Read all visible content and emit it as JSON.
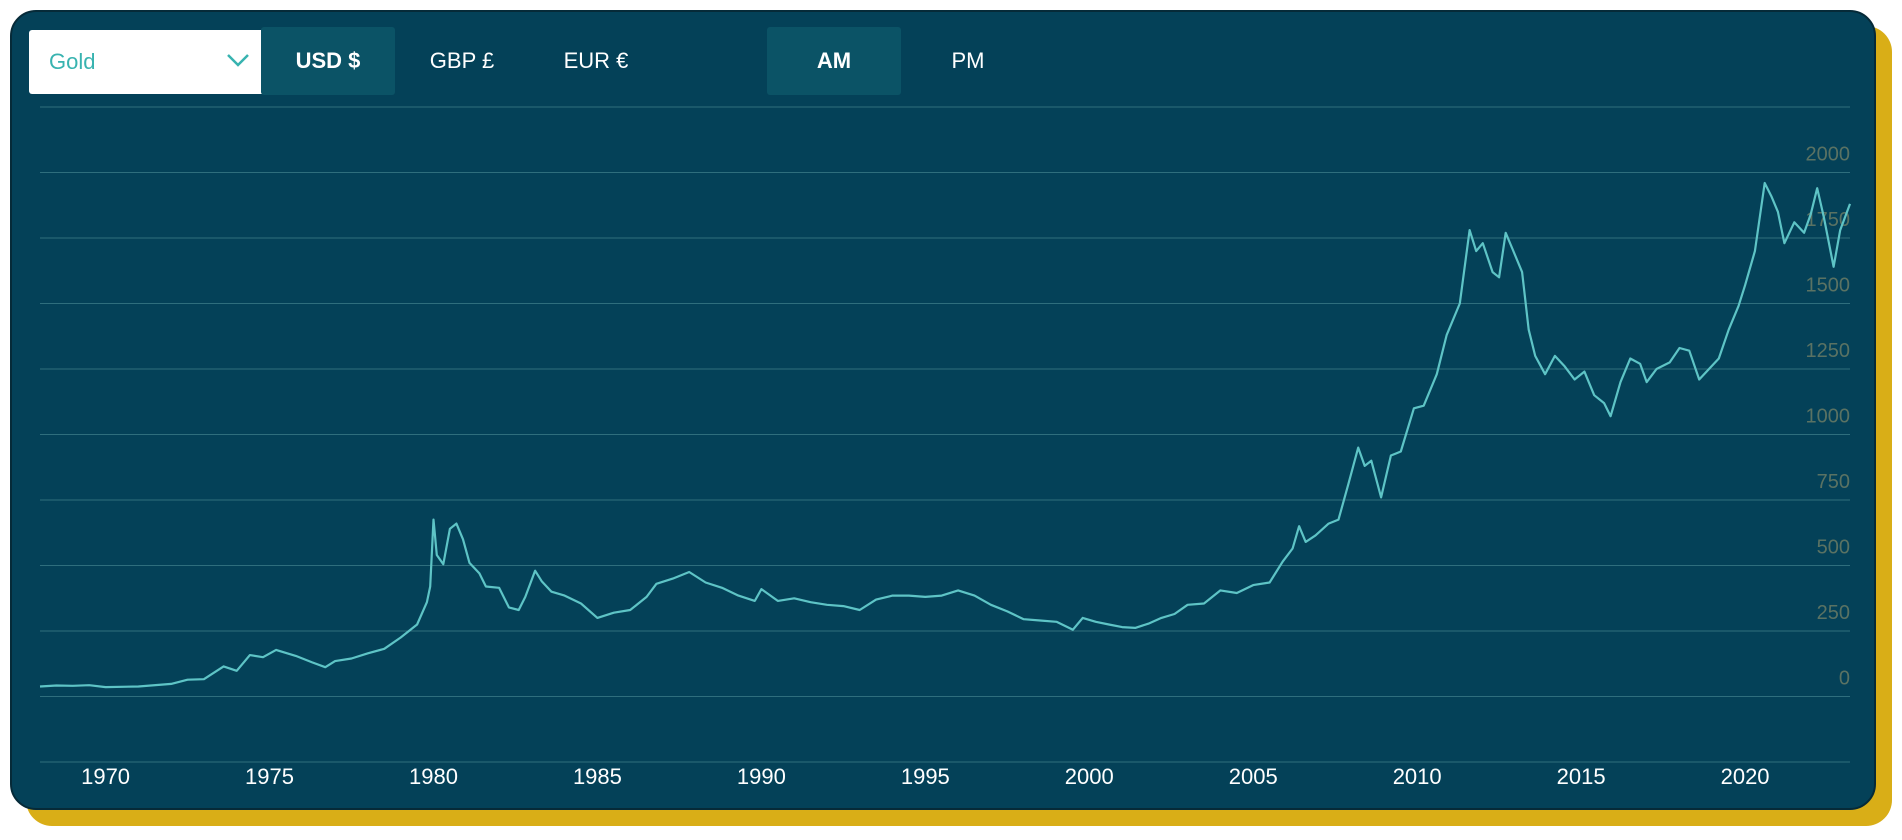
{
  "controls": {
    "metal_select": {
      "value": "Gold"
    },
    "currency_tabs": [
      {
        "label": "USD $",
        "active": true
      },
      {
        "label": "GBP £",
        "active": false
      },
      {
        "label": "EUR €",
        "active": false
      }
    ],
    "session_tabs": [
      {
        "label": "AM",
        "active": true
      },
      {
        "label": "PM",
        "active": false
      }
    ]
  },
  "colors": {
    "background": "#044158",
    "line": "#5ec4c6",
    "gridline": "#2f6e7d",
    "accent_border": "#d9ae17",
    "select_text": "#38b3b0",
    "y_tick_text": "#5a7263"
  },
  "chart_data": {
    "type": "line",
    "title": "",
    "xlabel": "",
    "ylabel": "",
    "grid": true,
    "y_axis_side": "right",
    "xlim": [
      1968.0,
      2023.2
    ],
    "ylim": [
      -250,
      2250
    ],
    "x_tick_labels": [
      "1970",
      "1975",
      "1980",
      "1985",
      "1990",
      "1995",
      "2000",
      "2005",
      "2010",
      "2015",
      "2020"
    ],
    "y_tick_labels": [
      "0",
      "250",
      "500",
      "750",
      "1000",
      "1250",
      "1500",
      "1750",
      "2000"
    ],
    "series": [
      {
        "values": [
          [
            1968.0,
            38
          ],
          [
            1968.5,
            42
          ],
          [
            1969.0,
            41
          ],
          [
            1969.5,
            43
          ],
          [
            1970.0,
            36
          ],
          [
            1971.0,
            38
          ],
          [
            1972.0,
            48
          ],
          [
            1972.5,
            64
          ],
          [
            1973.0,
            66
          ],
          [
            1973.6,
            115
          ],
          [
            1974.0,
            98
          ],
          [
            1974.4,
            158
          ],
          [
            1974.8,
            150
          ],
          [
            1975.2,
            178
          ],
          [
            1975.8,
            155
          ],
          [
            1976.3,
            130
          ],
          [
            1976.7,
            112
          ],
          [
            1977.0,
            135
          ],
          [
            1977.5,
            145
          ],
          [
            1978.0,
            165
          ],
          [
            1978.5,
            182
          ],
          [
            1979.0,
            225
          ],
          [
            1979.5,
            275
          ],
          [
            1979.8,
            360
          ],
          [
            1979.9,
            420
          ],
          [
            1980.0,
            675
          ],
          [
            1980.1,
            540
          ],
          [
            1980.3,
            505
          ],
          [
            1980.5,
            640
          ],
          [
            1980.7,
            660
          ],
          [
            1980.9,
            600
          ],
          [
            1981.1,
            510
          ],
          [
            1981.4,
            470
          ],
          [
            1981.6,
            420
          ],
          [
            1982.0,
            415
          ],
          [
            1982.3,
            340
          ],
          [
            1982.6,
            330
          ],
          [
            1982.8,
            380
          ],
          [
            1983.1,
            480
          ],
          [
            1983.3,
            440
          ],
          [
            1983.6,
            400
          ],
          [
            1984.0,
            385
          ],
          [
            1984.5,
            355
          ],
          [
            1985.0,
            300
          ],
          [
            1985.5,
            320
          ],
          [
            1986.0,
            330
          ],
          [
            1986.5,
            380
          ],
          [
            1986.8,
            430
          ],
          [
            1987.3,
            450
          ],
          [
            1987.8,
            475
          ],
          [
            1988.3,
            435
          ],
          [
            1988.8,
            415
          ],
          [
            1989.3,
            385
          ],
          [
            1989.8,
            365
          ],
          [
            1990.0,
            410
          ],
          [
            1990.5,
            365
          ],
          [
            1991.0,
            375
          ],
          [
            1991.5,
            360
          ],
          [
            1992.0,
            350
          ],
          [
            1992.5,
            345
          ],
          [
            1993.0,
            330
          ],
          [
            1993.5,
            370
          ],
          [
            1994.0,
            385
          ],
          [
            1994.5,
            385
          ],
          [
            1995.0,
            380
          ],
          [
            1995.5,
            385
          ],
          [
            1996.0,
            405
          ],
          [
            1996.5,
            385
          ],
          [
            1997.0,
            350
          ],
          [
            1997.5,
            325
          ],
          [
            1998.0,
            295
          ],
          [
            1998.5,
            290
          ],
          [
            1999.0,
            285
          ],
          [
            1999.5,
            255
          ],
          [
            1999.8,
            300
          ],
          [
            2000.2,
            285
          ],
          [
            2000.6,
            275
          ],
          [
            2001.0,
            265
          ],
          [
            2001.4,
            262
          ],
          [
            2001.8,
            278
          ],
          [
            2002.2,
            300
          ],
          [
            2002.6,
            315
          ],
          [
            2003.0,
            350
          ],
          [
            2003.5,
            355
          ],
          [
            2004.0,
            405
          ],
          [
            2004.5,
            395
          ],
          [
            2005.0,
            425
          ],
          [
            2005.5,
            435
          ],
          [
            2005.9,
            515
          ],
          [
            2006.2,
            565
          ],
          [
            2006.4,
            650
          ],
          [
            2006.6,
            590
          ],
          [
            2006.9,
            615
          ],
          [
            2007.3,
            660
          ],
          [
            2007.6,
            675
          ],
          [
            2007.9,
            810
          ],
          [
            2008.2,
            950
          ],
          [
            2008.4,
            880
          ],
          [
            2008.6,
            900
          ],
          [
            2008.9,
            760
          ],
          [
            2009.2,
            920
          ],
          [
            2009.5,
            935
          ],
          [
            2009.9,
            1100
          ],
          [
            2010.2,
            1110
          ],
          [
            2010.6,
            1230
          ],
          [
            2010.9,
            1380
          ],
          [
            2011.3,
            1500
          ],
          [
            2011.6,
            1780
          ],
          [
            2011.8,
            1700
          ],
          [
            2012.0,
            1730
          ],
          [
            2012.3,
            1620
          ],
          [
            2012.5,
            1600
          ],
          [
            2012.7,
            1770
          ],
          [
            2012.9,
            1710
          ],
          [
            2013.2,
            1620
          ],
          [
            2013.4,
            1400
          ],
          [
            2013.6,
            1300
          ],
          [
            2013.9,
            1230
          ],
          [
            2014.2,
            1300
          ],
          [
            2014.5,
            1260
          ],
          [
            2014.8,
            1210
          ],
          [
            2015.1,
            1240
          ],
          [
            2015.4,
            1150
          ],
          [
            2015.7,
            1120
          ],
          [
            2015.9,
            1070
          ],
          [
            2016.2,
            1200
          ],
          [
            2016.5,
            1290
          ],
          [
            2016.8,
            1270
          ],
          [
            2017.0,
            1200
          ],
          [
            2017.3,
            1250
          ],
          [
            2017.7,
            1275
          ],
          [
            2018.0,
            1330
          ],
          [
            2018.3,
            1320
          ],
          [
            2018.6,
            1210
          ],
          [
            2018.9,
            1250
          ],
          [
            2019.2,
            1290
          ],
          [
            2019.5,
            1400
          ],
          [
            2019.8,
            1490
          ],
          [
            2020.0,
            1570
          ],
          [
            2020.3,
            1700
          ],
          [
            2020.6,
            1960
          ],
          [
            2020.8,
            1910
          ],
          [
            2021.0,
            1850
          ],
          [
            2021.2,
            1730
          ],
          [
            2021.5,
            1810
          ],
          [
            2021.8,
            1770
          ],
          [
            2022.0,
            1840
          ],
          [
            2022.2,
            1940
          ],
          [
            2022.4,
            1830
          ],
          [
            2022.7,
            1640
          ],
          [
            2022.9,
            1780
          ],
          [
            2023.2,
            1880
          ]
        ]
      }
    ]
  }
}
